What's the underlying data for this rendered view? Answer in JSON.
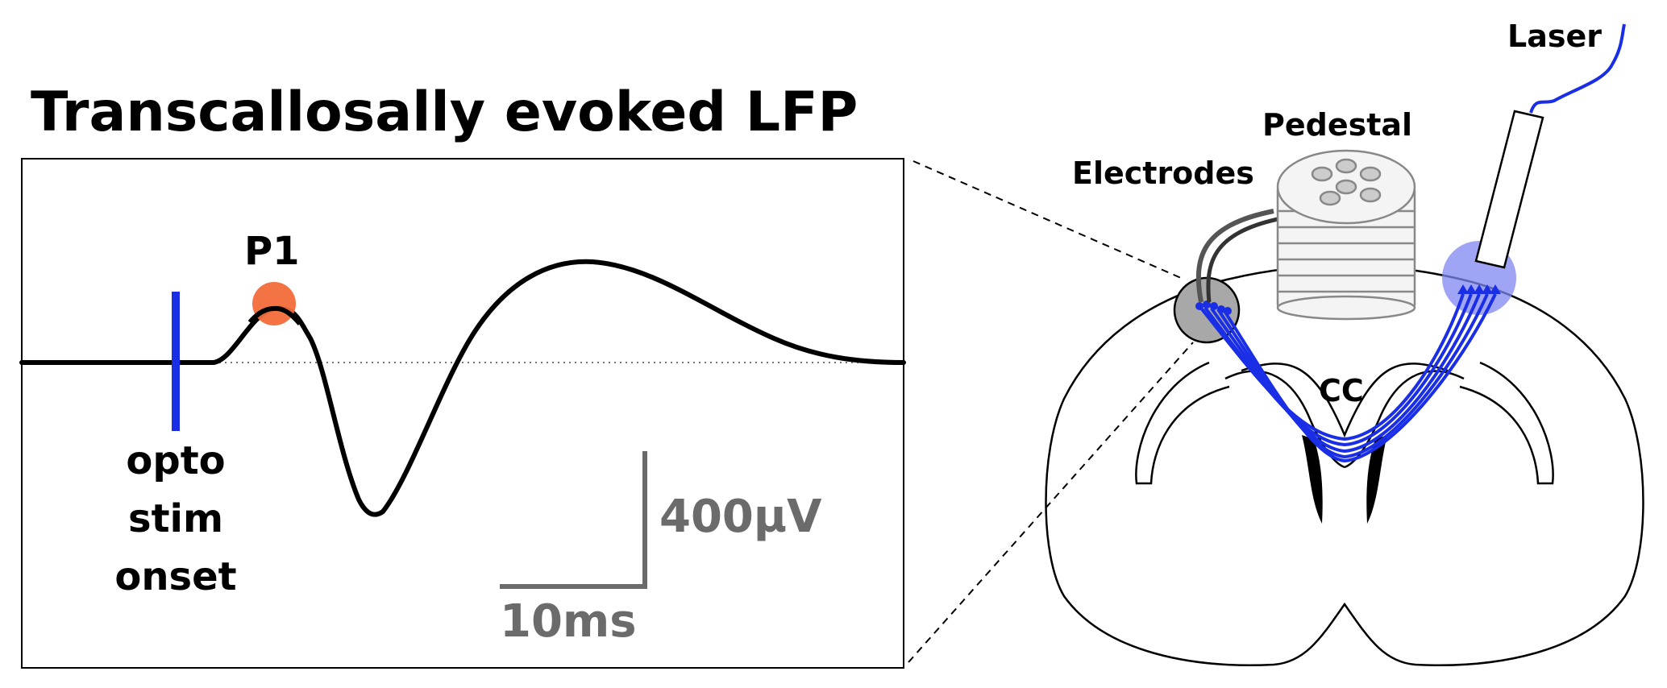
{
  "title": "Transcallosally evoked LFP",
  "labels": {
    "p1": "P1",
    "stim_line1": "opto",
    "stim_line2": "stim",
    "stim_line3": "onset",
    "scale_voltage": "400µV",
    "scale_time": "10ms",
    "laser": "Laser",
    "pedestal": "Pedestal",
    "electrodes": "Electrodes",
    "cc": "CC"
  },
  "colors": {
    "trace": "#000000",
    "stim_marker": "#1a2ee6",
    "p1_marker": "#f26b3a",
    "scale_bar": "#6b6b6b",
    "axons": "#1a2ee6",
    "laser_spot": "#7f86f2",
    "electrode_site": "#a8a8a8"
  },
  "icons": [
    "pedestal-connector-icon",
    "optic-fiber-icon",
    "brain-section-icon"
  ]
}
